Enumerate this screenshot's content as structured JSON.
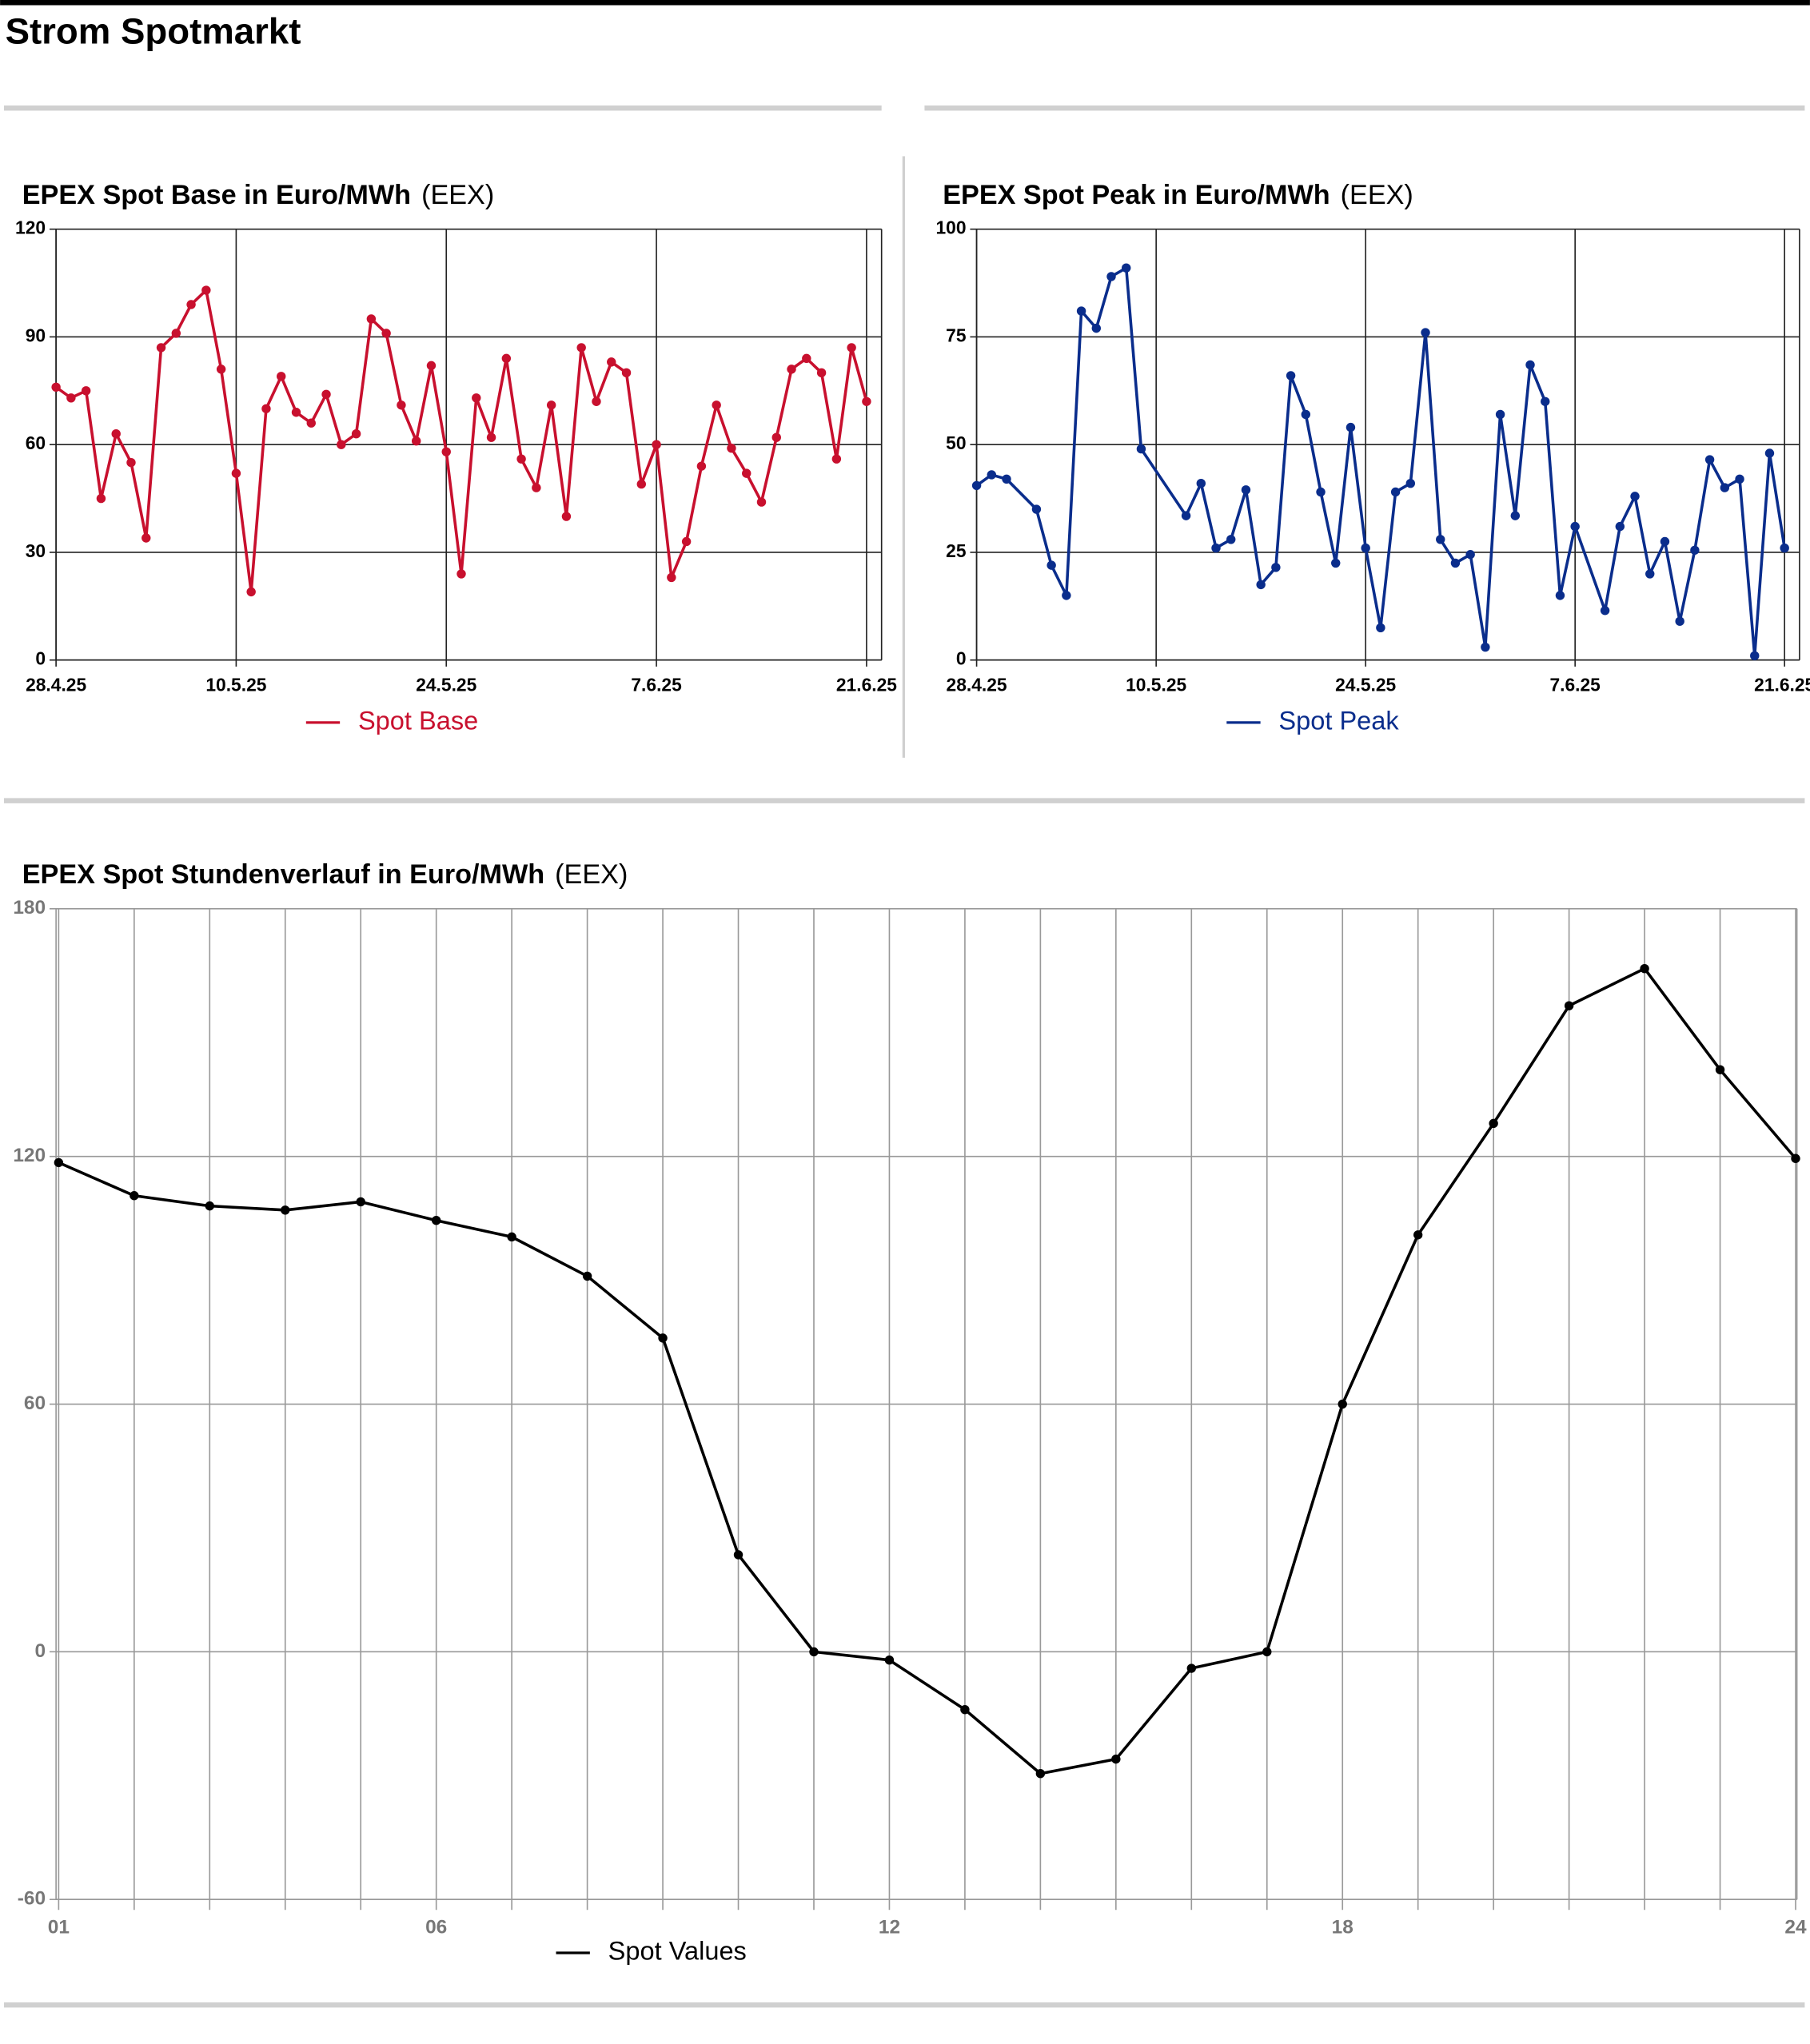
{
  "title": "Strom Spotmarkt",
  "chart_data": [
    {
      "type": "line",
      "title": "EPEX Spot Base in Euro/MWh",
      "subtitle": "(EEX)",
      "x": [
        "28.4.25",
        "29.4.25",
        "30.4.25",
        "1.5.25",
        "2.5.25",
        "3.5.25",
        "4.5.25",
        "5.5.25",
        "6.5.25",
        "7.5.25",
        "8.5.25",
        "9.5.25",
        "10.5.25",
        "11.5.25",
        "12.5.25",
        "13.5.25",
        "14.5.25",
        "15.5.25",
        "16.5.25",
        "17.5.25",
        "18.5.25",
        "19.5.25",
        "20.5.25",
        "21.5.25",
        "22.5.25",
        "23.5.25",
        "24.5.25",
        "25.5.25",
        "26.5.25",
        "27.5.25",
        "28.5.25",
        "29.5.25",
        "30.5.25",
        "31.5.25",
        "1.6.25",
        "2.6.25",
        "3.6.25",
        "4.6.25",
        "5.6.25",
        "6.6.25",
        "7.6.25",
        "8.6.25",
        "9.6.25",
        "10.6.25",
        "11.6.25",
        "12.6.25",
        "13.6.25",
        "14.6.25",
        "15.6.25",
        "16.6.25",
        "17.6.25",
        "18.6.25",
        "19.6.25",
        "20.6.25",
        "21.6.25"
      ],
      "series": [
        {
          "name": "Spot Base",
          "color": "#c8102e",
          "values": [
            76,
            73,
            75,
            45,
            63,
            55,
            34,
            87,
            91,
            99,
            103,
            81,
            52,
            19,
            70,
            79,
            69,
            66,
            74,
            60,
            63,
            95,
            91,
            71,
            61,
            82,
            58,
            24,
            73,
            62,
            84,
            56,
            48,
            71,
            40,
            87,
            72,
            83,
            80,
            49,
            60,
            23,
            33,
            54,
            71,
            59,
            52,
            44,
            62,
            81,
            84,
            80,
            56,
            87,
            72
          ]
        }
      ],
      "xlim": [
        "28.4.25",
        "22.6.25"
      ],
      "xticks": [
        "28.4.25",
        "10.5.25",
        "24.5.25",
        "7.6.25",
        "21.6.25"
      ],
      "ylim": [
        0,
        120
      ],
      "yticks": [
        0,
        30,
        60,
        90,
        120
      ],
      "grid": true,
      "legend": "bottom"
    },
    {
      "type": "line",
      "title": "EPEX Spot Peak in Euro/MWh",
      "subtitle": "(EEX)",
      "x": [
        "28.4.25",
        "29.4.25",
        "30.4.25",
        "2.5.25",
        "3.5.25",
        "4.5.25",
        "5.5.25",
        "6.5.25",
        "7.5.25",
        "8.5.25",
        "9.5.25",
        "12.5.25",
        "13.5.25",
        "14.5.25",
        "15.5.25",
        "16.5.25",
        "17.5.25",
        "18.5.25",
        "19.5.25",
        "20.5.25",
        "21.5.25",
        "22.5.25",
        "23.5.25",
        "24.5.25",
        "25.5.25",
        "26.5.25",
        "27.5.25",
        "28.5.25",
        "29.5.25",
        "30.5.25",
        "31.5.25",
        "1.6.25",
        "2.6.25",
        "3.6.25",
        "4.6.25",
        "5.6.25",
        "6.6.25",
        "7.6.25",
        "9.6.25",
        "10.6.25",
        "11.6.25",
        "12.6.25",
        "13.6.25",
        "14.6.25",
        "15.6.25",
        "16.6.25",
        "17.6.25",
        "18.6.25",
        "19.6.25",
        "20.6.25",
        "21.6.25"
      ],
      "series": [
        {
          "name": "Spot Peak",
          "color": "#0a2d8c",
          "values": [
            40.5,
            43,
            42,
            35,
            22,
            15,
            81,
            77,
            89,
            91,
            49,
            33.5,
            41,
            26,
            28,
            39.5,
            17.5,
            21.5,
            66,
            57,
            39,
            22.5,
            54,
            26,
            7.5,
            39,
            41,
            76,
            28,
            22.5,
            24.5,
            3,
            57,
            33.5,
            68.5,
            60,
            15,
            31,
            11.5,
            31,
            38,
            20,
            27.5,
            9,
            25.5,
            46.5,
            40,
            42,
            1,
            48,
            26
          ]
        }
      ],
      "xlim": [
        "28.4.25",
        "22.6.25"
      ],
      "xticks": [
        "28.4.25",
        "10.5.25",
        "24.5.25",
        "7.6.25",
        "21.6.25"
      ],
      "ylim": [
        0,
        100
      ],
      "yticks": [
        0,
        25,
        50,
        75,
        100
      ],
      "grid": true,
      "legend": "bottom"
    },
    {
      "type": "line",
      "title": "EPEX Spot Stundenverlauf in Euro/MWh",
      "subtitle": "(EEX)",
      "categories": [
        "01",
        null,
        null,
        null,
        null,
        "06",
        null,
        null,
        null,
        null,
        null,
        "12",
        null,
        null,
        null,
        null,
        null,
        "18",
        null,
        null,
        null,
        null,
        null,
        "24"
      ],
      "series": [
        {
          "name": "Spot Values",
          "color": "#000000",
          "values": [
            118.5,
            110.5,
            108,
            107,
            109,
            104.5,
            100.5,
            91,
            76,
            23.5,
            0,
            -2,
            -14,
            -29.5,
            -26,
            -4,
            0,
            60,
            101,
            128,
            156.5,
            165.5,
            141,
            119.5
          ]
        }
      ],
      "ylim": [
        -60,
        180
      ],
      "yticks": [
        -60,
        0,
        60,
        120,
        180
      ],
      "grid": true,
      "legend": "bottom"
    }
  ]
}
